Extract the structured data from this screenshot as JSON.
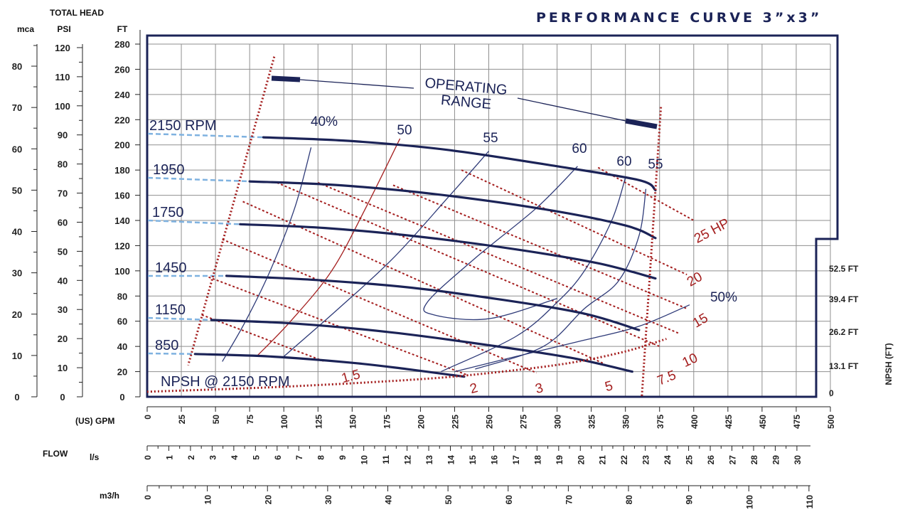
{
  "chart_data": {
    "type": "line",
    "title": "PERFORMANCE CURVE 3”x3”",
    "header_total_head": "TOTAL HEAD",
    "units": {
      "mca": "mca",
      "psi": "PSI",
      "ft": "FT",
      "gpm": "(US) GPM",
      "flow": "FLOW",
      "ls": "l/s",
      "m3h": "m3/h",
      "npsh": "NPSH (FT)"
    },
    "axes": {
      "head_ft": {
        "ticks": [
          0,
          20,
          40,
          60,
          80,
          100,
          120,
          140,
          160,
          180,
          200,
          220,
          240,
          260,
          280
        ],
        "range": [
          0,
          280
        ]
      },
      "head_psi": {
        "ticks": [
          0,
          10,
          20,
          30,
          40,
          50,
          60,
          70,
          80,
          90,
          100,
          110,
          120
        ]
      },
      "head_mca": {
        "ticks": [
          0,
          10,
          20,
          30,
          40,
          50,
          60,
          70,
          80
        ]
      },
      "gpm": {
        "ticks": [
          0,
          25,
          50,
          75,
          100,
          125,
          150,
          175,
          200,
          225,
          250,
          275,
          300,
          325,
          350,
          375,
          400,
          425,
          450,
          475,
          500
        ],
        "range": [
          0,
          500
        ]
      },
      "ls": {
        "ticks": [
          0,
          1,
          2,
          3,
          4,
          5,
          6,
          7,
          8,
          9,
          10,
          11,
          12,
          13,
          14,
          15,
          16,
          17,
          18,
          19,
          20,
          21,
          22,
          23,
          24,
          25,
          26,
          27,
          28,
          29,
          30
        ]
      },
      "m3h": {
        "ticks": [
          0,
          10,
          20,
          30,
          40,
          50,
          60,
          70,
          80,
          90,
          100,
          110
        ]
      },
      "npsh_ft": {
        "ticks": [
          "0",
          "13.1 FT",
          "26.2 FT",
          "39.4 FT",
          "52.5 FT"
        ]
      }
    },
    "rpm_curves": [
      {
        "name": "2150 RPM",
        "gpm": [
          85,
          150,
          220,
          300,
          360,
          372
        ],
        "ft": [
          206,
          203,
          196,
          183,
          172,
          164
        ]
      },
      {
        "name": "1950",
        "gpm": [
          75,
          140,
          210,
          290,
          350,
          372
        ],
        "ft": [
          171,
          168,
          161,
          149,
          136,
          126
        ]
      },
      {
        "name": "1750",
        "gpm": [
          68,
          130,
          200,
          270,
          330,
          372
        ],
        "ft": [
          137,
          134,
          127,
          117,
          106,
          94
        ]
      },
      {
        "name": "1450",
        "gpm": [
          58,
          120,
          190,
          260,
          320,
          360
        ],
        "ft": [
          96,
          93,
          87,
          77,
          66,
          53
        ]
      },
      {
        "name": "1150",
        "gpm": [
          47,
          110,
          180,
          250,
          310,
          355
        ],
        "ft": [
          61,
          58,
          51,
          41,
          31,
          20
        ]
      },
      {
        "name": "850",
        "gpm": [
          35,
          90,
          150,
          190,
          232
        ],
        "ft": [
          34,
          32,
          27,
          22,
          16
        ]
      }
    ],
    "efficiency_curves": [
      {
        "name": "40%",
        "gpm": [
          120,
          108,
          90,
          72,
          55
        ],
        "ft": [
          198,
          150,
          100,
          60,
          28
        ]
      },
      {
        "name": "50",
        "gpm": [
          185,
          160,
          135,
          105,
          80
        ],
        "ft": [
          205,
          150,
          100,
          60,
          32
        ]
      },
      {
        "name": "55",
        "gpm": [
          250,
          220,
          180,
          140,
          100
        ],
        "ft": [
          195,
          158,
          110,
          70,
          32
        ]
      },
      {
        "name": "60",
        "gpm": [
          315,
          285,
          240,
          205,
          210,
          250,
          300
        ],
        "ft": [
          183,
          150,
          110,
          75,
          65,
          62,
          78
        ]
      },
      {
        "name": "60",
        "gpm": [
          350,
          340,
          320,
          300,
          270,
          215
        ],
        "ft": [
          174,
          140,
          100,
          75,
          48,
          20
        ]
      },
      {
        "name": "55",
        "gpm": [
          365,
          360,
          345,
          320,
          290,
          240
        ],
        "ft": [
          165,
          128,
          92,
          70,
          40,
          22
        ]
      },
      {
        "name": "50%",
        "gpm": [
          397,
          360,
          320,
          270,
          225
        ],
        "ft": [
          73,
          56,
          45,
          32,
          20
        ]
      }
    ],
    "power_lines": [
      {
        "name": "1.5",
        "gpm": [
          40,
          130
        ],
        "ft": [
          65,
          28
        ]
      },
      {
        "name": "2",
        "gpm": [
          45,
          235
        ],
        "ft": [
          95,
          17
        ]
      },
      {
        "name": "3",
        "gpm": [
          55,
          285
        ],
        "ft": [
          125,
          19
        ]
      },
      {
        "name": "5",
        "gpm": [
          70,
          335
        ],
        "ft": [
          155,
          26
        ]
      },
      {
        "name": "7.5",
        "gpm": [
          95,
          375
        ],
        "ft": [
          170,
          40
        ]
      },
      {
        "name": "10",
        "gpm": [
          125,
          390
        ],
        "ft": [
          170,
          50
        ]
      },
      {
        "name": "15",
        "gpm": [
          180,
          395
        ],
        "ft": [
          168,
          70
        ]
      },
      {
        "name": "20",
        "gpm": [
          230,
          395
        ],
        "ft": [
          180,
          97
        ]
      },
      {
        "name": "25 HP",
        "gpm": [
          330,
          400
        ],
        "ft": [
          182,
          140
        ]
      }
    ],
    "operating_range_label": "OPERATING RANGE",
    "operating_range": {
      "left": {
        "gpm": [
          93,
          30
        ],
        "ft": [
          270,
          25
        ]
      },
      "right": {
        "gpm": [
          376,
          362
        ],
        "ft": [
          230,
          0
        ]
      }
    },
    "npsh_curve": {
      "name": "NPSH @ 2150 RPM",
      "gpm": [
        0,
        100,
        200,
        260,
        310,
        350,
        380
      ],
      "ft": [
        4,
        8,
        14,
        20,
        27,
        36,
        46
      ]
    },
    "colors": {
      "curve": "#1b2357",
      "efficiency": "#2e3a78",
      "red": "#a41e1e",
      "dashed": "#7fb2e0",
      "grid": "#8f8f8f"
    }
  }
}
